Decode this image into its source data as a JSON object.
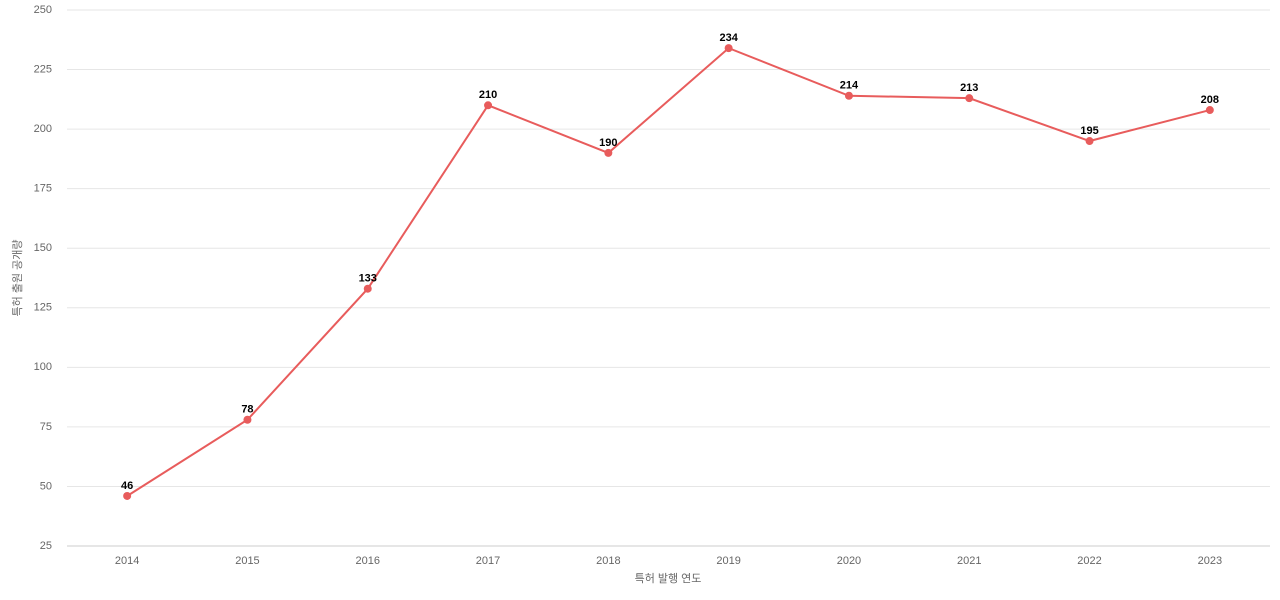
{
  "chart_data": {
    "type": "line",
    "x_label": "특허 발행 연도",
    "y_label": "특허 출원 공개량",
    "categories": [
      "2014",
      "2015",
      "2016",
      "2017",
      "2018",
      "2019",
      "2020",
      "2021",
      "2022",
      "2023"
    ],
    "series": [
      {
        "color": "#e85c5c",
        "values": [
          46,
          78,
          133,
          210,
          190,
          234,
          214,
          213,
          195,
          208
        ]
      }
    ],
    "ylim": [
      25,
      250
    ],
    "yticks": [
      25,
      50,
      75,
      100,
      125,
      150,
      175,
      200,
      225,
      250
    ],
    "grid": true,
    "data_labels": true
  }
}
